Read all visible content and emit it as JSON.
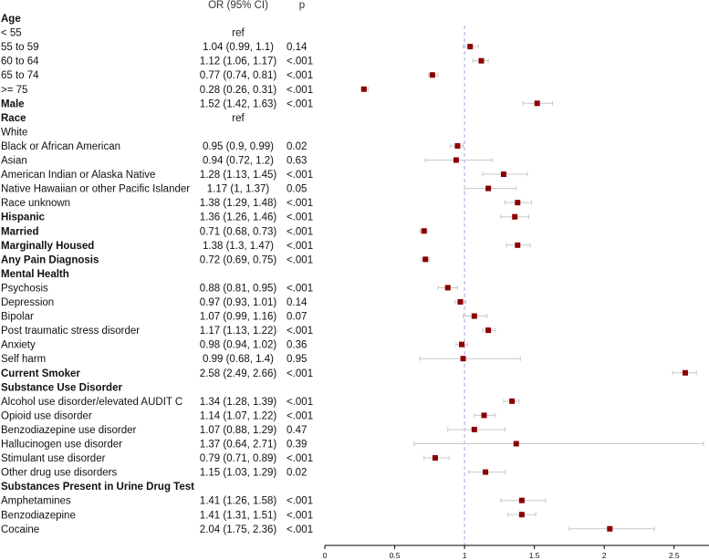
{
  "chart_data": {
    "type": "forest",
    "columns": {
      "or": "OR (95% CI)",
      "p": "p"
    },
    "xlim": [
      0,
      2.75
    ],
    "xticks": [
      "0",
      "0.5",
      "1",
      "1.5",
      "2",
      "2.5"
    ],
    "xtick_values": [
      0,
      0.5,
      1,
      1.5,
      2,
      2.5
    ],
    "reference_line": 1,
    "colors": {
      "point": "#8b0000",
      "ci": "#c8c8c8",
      "ref": "#a6a6e6",
      "axis": "#000000"
    },
    "rows": [
      {
        "label": "Age",
        "header": true
      },
      {
        "label": "< 55",
        "or_text": "ref"
      },
      {
        "label": "55 to 59",
        "or_text": "1.04 (0.99, 1.1)",
        "p": "0.14",
        "or": 1.04,
        "lo": 0.99,
        "hi": 1.1
      },
      {
        "label": "60 to 64",
        "or_text": "1.12 (1.06, 1.17)",
        "p": "<.001",
        "or": 1.12,
        "lo": 1.06,
        "hi": 1.17
      },
      {
        "label": "65 to 74",
        "or_text": "0.77 (0.74, 0.81)",
        "p": "<.001",
        "or": 0.77,
        "lo": 0.74,
        "hi": 0.81
      },
      {
        "label": ">= 75",
        "or_text": "0.28 (0.26, 0.31)",
        "p": "<.001",
        "or": 0.28,
        "lo": 0.26,
        "hi": 0.31
      },
      {
        "label": "Male",
        "bold": true,
        "or_text": "1.52 (1.42, 1.63)",
        "p": "<.001",
        "or": 1.52,
        "lo": 1.42,
        "hi": 1.63
      },
      {
        "label": "Race",
        "header": true,
        "or_text": "ref"
      },
      {
        "label": "White"
      },
      {
        "label": "Black or African American",
        "or_text": "0.95 (0.9, 0.99)",
        "p": "0.02",
        "or": 0.95,
        "lo": 0.9,
        "hi": 0.99
      },
      {
        "label": "Asian",
        "or_text": "0.94 (0.72, 1.2)",
        "p": "0.63",
        "or": 0.94,
        "lo": 0.72,
        "hi": 1.2
      },
      {
        "label": "American Indian or Alaska Native",
        "or_text": "1.28 (1.13, 1.45)",
        "p": "<.001",
        "or": 1.28,
        "lo": 1.13,
        "hi": 1.45
      },
      {
        "label": "Native Hawaiian or other Pacific Islander",
        "or_text": "1.17 (1, 1.37)",
        "p": "0.05",
        "or": 1.17,
        "lo": 1.0,
        "hi": 1.37
      },
      {
        "label": "Race unknown",
        "or_text": "1.38 (1.29, 1.48)",
        "p": "<.001",
        "or": 1.38,
        "lo": 1.29,
        "hi": 1.48
      },
      {
        "label": "Hispanic",
        "bold": true,
        "or_text": "1.36 (1.26, 1.46)",
        "p": "<.001",
        "or": 1.36,
        "lo": 1.26,
        "hi": 1.46
      },
      {
        "label": "Married",
        "bold": true,
        "or_text": "0.71 (0.68, 0.73)",
        "p": "<.001",
        "or": 0.71,
        "lo": 0.68,
        "hi": 0.73
      },
      {
        "label": "Marginally Housed",
        "bold": true,
        "or_text": "1.38 (1.3, 1.47)",
        "p": "<.001",
        "or": 1.38,
        "lo": 1.3,
        "hi": 1.47
      },
      {
        "label": "Any Pain Diagnosis",
        "bold": true,
        "or_text": "0.72 (0.69, 0.75)",
        "p": "<.001",
        "or": 0.72,
        "lo": 0.69,
        "hi": 0.75
      },
      {
        "label": "Mental Health",
        "header": true
      },
      {
        "label": "Psychosis",
        "or_text": "0.88 (0.81, 0.95)",
        "p": "<.001",
        "or": 0.88,
        "lo": 0.81,
        "hi": 0.95
      },
      {
        "label": "Depression",
        "or_text": "0.97 (0.93, 1.01)",
        "p": "0.14",
        "or": 0.97,
        "lo": 0.93,
        "hi": 1.01
      },
      {
        "label": "Bipolar",
        "or_text": "1.07 (0.99, 1.16)",
        "p": "0.07",
        "or": 1.07,
        "lo": 0.99,
        "hi": 1.16
      },
      {
        "label": "Post traumatic stress disorder",
        "or_text": "1.17 (1.13, 1.22)",
        "p": "<.001",
        "or": 1.17,
        "lo": 1.13,
        "hi": 1.22
      },
      {
        "label": "Anxiety",
        "or_text": "0.98 (0.94, 1.02)",
        "p": "0.36",
        "or": 0.98,
        "lo": 0.94,
        "hi": 1.02
      },
      {
        "label": "Self harm",
        "or_text": "0.99 (0.68, 1.4)",
        "p": "0.95",
        "or": 0.99,
        "lo": 0.68,
        "hi": 1.4
      },
      {
        "label": "Current Smoker",
        "bold": true,
        "or_text": "2.58 (2.49, 2.66)",
        "p": "<.001",
        "or": 2.58,
        "lo": 2.49,
        "hi": 2.66
      },
      {
        "label": "Substance Use Disorder",
        "header": true
      },
      {
        "label": "Alcohol use disorder/elevated AUDIT C",
        "or_text": "1.34 (1.28, 1.39)",
        "p": "<.001",
        "or": 1.34,
        "lo": 1.28,
        "hi": 1.39
      },
      {
        "label": "Opioid use disorder",
        "or_text": "1.14 (1.07, 1.22)",
        "p": "<.001",
        "or": 1.14,
        "lo": 1.07,
        "hi": 1.22
      },
      {
        "label": "Benzodiazepine use disorder",
        "or_text": "1.07 (0.88, 1.29)",
        "p": "0.47",
        "or": 1.07,
        "lo": 0.88,
        "hi": 1.29
      },
      {
        "label": "Hallucinogen use disorder",
        "or_text": "1.37 (0.64, 2.71)",
        "p": "0.39",
        "or": 1.37,
        "lo": 0.64,
        "hi": 2.71
      },
      {
        "label": "Stimulant use disorder",
        "or_text": "0.79 (0.71, 0.89)",
        "p": "<.001",
        "or": 0.79,
        "lo": 0.71,
        "hi": 0.89
      },
      {
        "label": "Other drug use disorders",
        "or_text": "1.15 (1.03, 1.29)",
        "p": "0.02",
        "or": 1.15,
        "lo": 1.03,
        "hi": 1.29
      },
      {
        "label": "Substances Present in Urine Drug Test",
        "header": true
      },
      {
        "label": "Amphetamines",
        "or_text": "1.41 (1.26, 1.58)",
        "p": "<.001",
        "or": 1.41,
        "lo": 1.26,
        "hi": 1.58
      },
      {
        "label": "Benzodiazepine",
        "or_text": "1.41 (1.31, 1.51)",
        "p": "<.001",
        "or": 1.41,
        "lo": 1.31,
        "hi": 1.51
      },
      {
        "label": "Cocaine",
        "or_text": "2.04 (1.75, 2.36)",
        "p": "<.001",
        "or": 2.04,
        "lo": 1.75,
        "hi": 2.36
      }
    ]
  }
}
